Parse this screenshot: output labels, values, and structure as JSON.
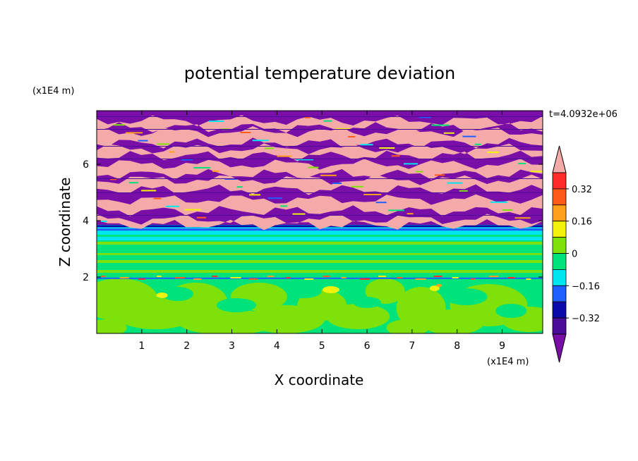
{
  "chart_data": {
    "type": "heatmap",
    "title": "potential temperature deviation",
    "time_label": "t=4.0932e+06",
    "xlabel": "X coordinate",
    "ylabel": "Z coordinate",
    "x_unit": "(x1E4 m)",
    "y_unit": "(x1E4 m)",
    "xlim": [
      0,
      9.9
    ],
    "ylim": [
      0,
      7.9
    ],
    "x_ticks": [
      "1",
      "2",
      "3",
      "4",
      "5",
      "6",
      "7",
      "8",
      "9"
    ],
    "y_ticks": [
      "2",
      "4",
      "6"
    ],
    "colorbar": {
      "levels": [
        -0.48,
        -0.4,
        -0.32,
        -0.24,
        -0.16,
        -0.08,
        0,
        0.08,
        0.16,
        0.24,
        0.32,
        0.4,
        0.48
      ],
      "colors": [
        "#7a0fa8",
        "#4b0c9a",
        "#0a0aa8",
        "#1f5fff",
        "#00e6f0",
        "#00e27a",
        "#7ee20a",
        "#f2f20a",
        "#ffa01a",
        "#ff5a1a",
        "#ff2a2a",
        "#f5aaaa"
      ],
      "labels": [
        "0.32",
        "0.16",
        "0",
        "-0.16",
        "-0.32"
      ]
    },
    "field_summary": [
      {
        "z_range": [
          0,
          1.9
        ],
        "dominant": "alternating 0 to 0.08 (light green) and -0.08 to 0 (green) patches"
      },
      {
        "z_range": [
          1.9,
          2.1
        ],
        "dominant": "thin band of mixed values with small positive streaks"
      },
      {
        "z_range": [
          2.1,
          3.3
        ],
        "dominant": "horizontal layering of -0.08 to 0.08"
      },
      {
        "z_range": [
          3.3,
          3.8
        ],
        "dominant": "-0.16 to -0.08 (cyan) layer"
      },
      {
        "z_range": [
          3.8,
          7.9
        ],
        "dominant": "alternating bands of about +0.48 (pink) and -0.48 (purple) with thin transition streaks"
      }
    ]
  }
}
